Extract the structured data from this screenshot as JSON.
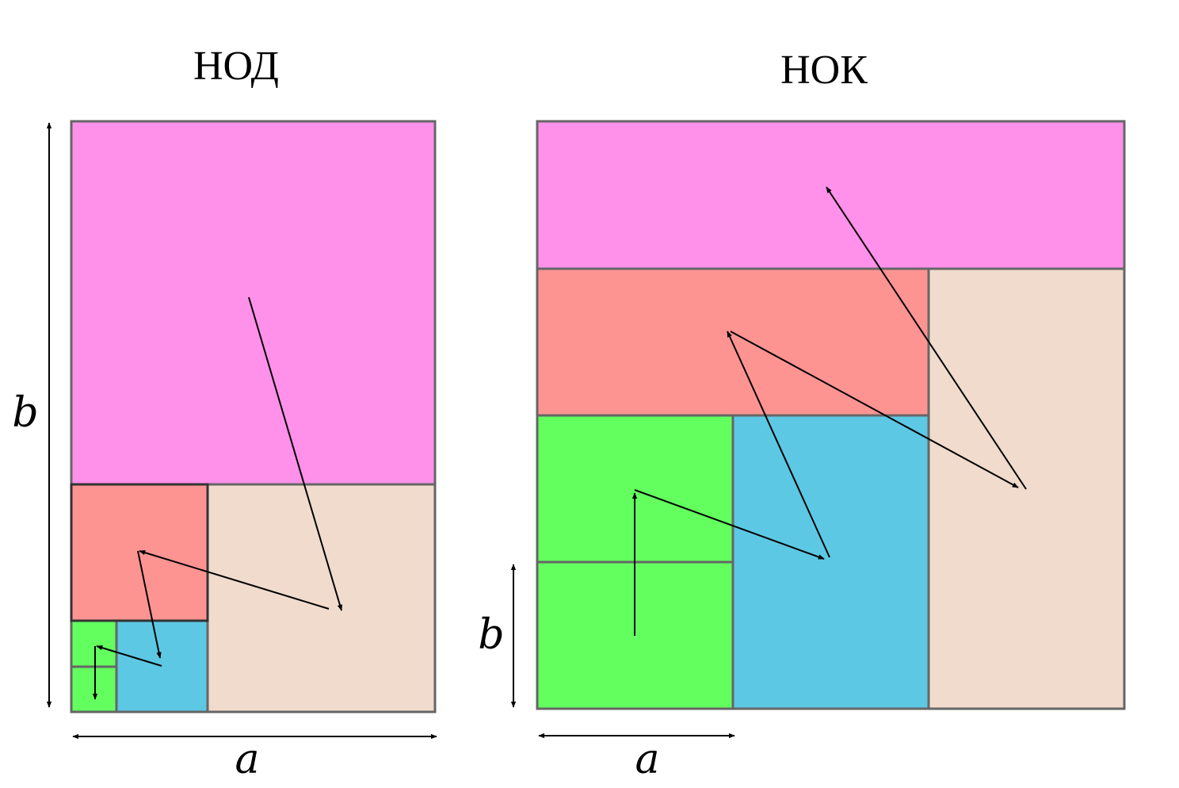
{
  "panels": [
    {
      "title": "НОД",
      "width_label": "a",
      "height_label": "b"
    },
    {
      "title": "НОК",
      "width_label": "a",
      "height_label": "b"
    }
  ]
}
